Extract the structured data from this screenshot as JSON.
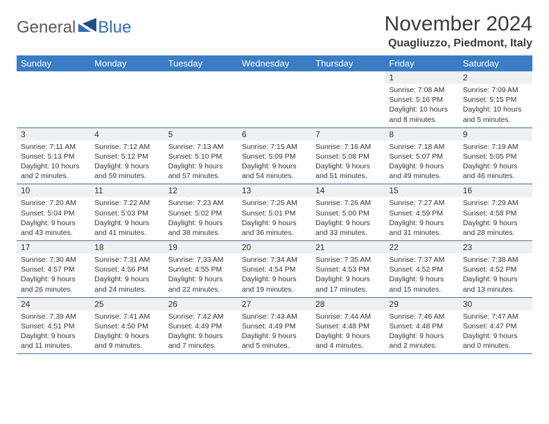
{
  "logo": {
    "word1": "General",
    "word2": "Blue"
  },
  "title": "November 2024",
  "location": "Quagliuzzo, Piedmont, Italy",
  "colors": {
    "header_bg": "#3b7dc4",
    "header_fg": "#ffffff",
    "daynum_bg": "#eef0f2",
    "rule": "#4a6f95",
    "logo_gray": "#5a5a5a",
    "logo_blue": "#2e6fb5"
  },
  "typography": {
    "title_fontsize": 30,
    "location_fontsize": 16,
    "dayhead_fontsize": 13,
    "body_fontsize": 10.5
  },
  "day_headers": [
    "Sunday",
    "Monday",
    "Tuesday",
    "Wednesday",
    "Thursday",
    "Friday",
    "Saturday"
  ],
  "weeks": [
    [
      {
        "n": "",
        "sunrise": "",
        "sunset": "",
        "daylight": ""
      },
      {
        "n": "",
        "sunrise": "",
        "sunset": "",
        "daylight": ""
      },
      {
        "n": "",
        "sunrise": "",
        "sunset": "",
        "daylight": ""
      },
      {
        "n": "",
        "sunrise": "",
        "sunset": "",
        "daylight": ""
      },
      {
        "n": "",
        "sunrise": "",
        "sunset": "",
        "daylight": ""
      },
      {
        "n": "1",
        "sunrise": "Sunrise: 7:08 AM",
        "sunset": "Sunset: 5:16 PM",
        "daylight": "Daylight: 10 hours and 8 minutes."
      },
      {
        "n": "2",
        "sunrise": "Sunrise: 7:09 AM",
        "sunset": "Sunset: 5:15 PM",
        "daylight": "Daylight: 10 hours and 5 minutes."
      }
    ],
    [
      {
        "n": "3",
        "sunrise": "Sunrise: 7:11 AM",
        "sunset": "Sunset: 5:13 PM",
        "daylight": "Daylight: 10 hours and 2 minutes."
      },
      {
        "n": "4",
        "sunrise": "Sunrise: 7:12 AM",
        "sunset": "Sunset: 5:12 PM",
        "daylight": "Daylight: 9 hours and 59 minutes."
      },
      {
        "n": "5",
        "sunrise": "Sunrise: 7:13 AM",
        "sunset": "Sunset: 5:10 PM",
        "daylight": "Daylight: 9 hours and 57 minutes."
      },
      {
        "n": "6",
        "sunrise": "Sunrise: 7:15 AM",
        "sunset": "Sunset: 5:09 PM",
        "daylight": "Daylight: 9 hours and 54 minutes."
      },
      {
        "n": "7",
        "sunrise": "Sunrise: 7:16 AM",
        "sunset": "Sunset: 5:08 PM",
        "daylight": "Daylight: 9 hours and 51 minutes."
      },
      {
        "n": "8",
        "sunrise": "Sunrise: 7:18 AM",
        "sunset": "Sunset: 5:07 PM",
        "daylight": "Daylight: 9 hours and 49 minutes."
      },
      {
        "n": "9",
        "sunrise": "Sunrise: 7:19 AM",
        "sunset": "Sunset: 5:05 PM",
        "daylight": "Daylight: 9 hours and 46 minutes."
      }
    ],
    [
      {
        "n": "10",
        "sunrise": "Sunrise: 7:20 AM",
        "sunset": "Sunset: 5:04 PM",
        "daylight": "Daylight: 9 hours and 43 minutes."
      },
      {
        "n": "11",
        "sunrise": "Sunrise: 7:22 AM",
        "sunset": "Sunset: 5:03 PM",
        "daylight": "Daylight: 9 hours and 41 minutes."
      },
      {
        "n": "12",
        "sunrise": "Sunrise: 7:23 AM",
        "sunset": "Sunset: 5:02 PM",
        "daylight": "Daylight: 9 hours and 38 minutes."
      },
      {
        "n": "13",
        "sunrise": "Sunrise: 7:25 AM",
        "sunset": "Sunset: 5:01 PM",
        "daylight": "Daylight: 9 hours and 36 minutes."
      },
      {
        "n": "14",
        "sunrise": "Sunrise: 7:26 AM",
        "sunset": "Sunset: 5:00 PM",
        "daylight": "Daylight: 9 hours and 33 minutes."
      },
      {
        "n": "15",
        "sunrise": "Sunrise: 7:27 AM",
        "sunset": "Sunset: 4:59 PM",
        "daylight": "Daylight: 9 hours and 31 minutes."
      },
      {
        "n": "16",
        "sunrise": "Sunrise: 7:29 AM",
        "sunset": "Sunset: 4:58 PM",
        "daylight": "Daylight: 9 hours and 28 minutes."
      }
    ],
    [
      {
        "n": "17",
        "sunrise": "Sunrise: 7:30 AM",
        "sunset": "Sunset: 4:57 PM",
        "daylight": "Daylight: 9 hours and 26 minutes."
      },
      {
        "n": "18",
        "sunrise": "Sunrise: 7:31 AM",
        "sunset": "Sunset: 4:56 PM",
        "daylight": "Daylight: 9 hours and 24 minutes."
      },
      {
        "n": "19",
        "sunrise": "Sunrise: 7:33 AM",
        "sunset": "Sunset: 4:55 PM",
        "daylight": "Daylight: 9 hours and 22 minutes."
      },
      {
        "n": "20",
        "sunrise": "Sunrise: 7:34 AM",
        "sunset": "Sunset: 4:54 PM",
        "daylight": "Daylight: 9 hours and 19 minutes."
      },
      {
        "n": "21",
        "sunrise": "Sunrise: 7:35 AM",
        "sunset": "Sunset: 4:53 PM",
        "daylight": "Daylight: 9 hours and 17 minutes."
      },
      {
        "n": "22",
        "sunrise": "Sunrise: 7:37 AM",
        "sunset": "Sunset: 4:52 PM",
        "daylight": "Daylight: 9 hours and 15 minutes."
      },
      {
        "n": "23",
        "sunrise": "Sunrise: 7:38 AM",
        "sunset": "Sunset: 4:52 PM",
        "daylight": "Daylight: 9 hours and 13 minutes."
      }
    ],
    [
      {
        "n": "24",
        "sunrise": "Sunrise: 7:39 AM",
        "sunset": "Sunset: 4:51 PM",
        "daylight": "Daylight: 9 hours and 11 minutes."
      },
      {
        "n": "25",
        "sunrise": "Sunrise: 7:41 AM",
        "sunset": "Sunset: 4:50 PM",
        "daylight": "Daylight: 9 hours and 9 minutes."
      },
      {
        "n": "26",
        "sunrise": "Sunrise: 7:42 AM",
        "sunset": "Sunset: 4:49 PM",
        "daylight": "Daylight: 9 hours and 7 minutes."
      },
      {
        "n": "27",
        "sunrise": "Sunrise: 7:43 AM",
        "sunset": "Sunset: 4:49 PM",
        "daylight": "Daylight: 9 hours and 5 minutes."
      },
      {
        "n": "28",
        "sunrise": "Sunrise: 7:44 AM",
        "sunset": "Sunset: 4:48 PM",
        "daylight": "Daylight: 9 hours and 4 minutes."
      },
      {
        "n": "29",
        "sunrise": "Sunrise: 7:46 AM",
        "sunset": "Sunset: 4:48 PM",
        "daylight": "Daylight: 9 hours and 2 minutes."
      },
      {
        "n": "30",
        "sunrise": "Sunrise: 7:47 AM",
        "sunset": "Sunset: 4:47 PM",
        "daylight": "Daylight: 9 hours and 0 minutes."
      }
    ]
  ]
}
